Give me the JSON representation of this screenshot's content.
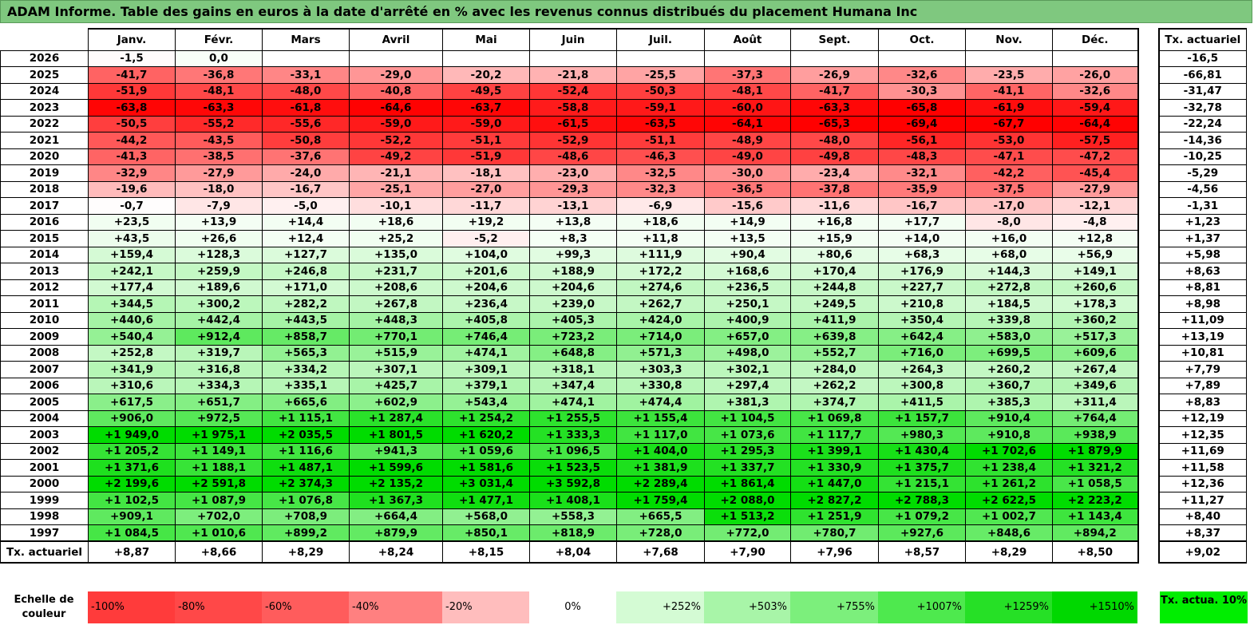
{
  "title": "ADAM Informe. Table des gains en euros à la date d'arrêté en % avec les revenus connus distribués du placement Humana Inc",
  "colors": {
    "title_bg": "#7fc87f",
    "negative": "#ff0000",
    "positive": "#00dd00"
  },
  "chart_data": {
    "type": "table",
    "columns": [
      "Janv.",
      "Févr.",
      "Mars",
      "Avril",
      "Mai",
      "Juin",
      "Juil.",
      "Août",
      "Sept.",
      "Oct.",
      "Nov.",
      "Déc."
    ],
    "rate_header": "Tx. actuariel",
    "rows": [
      {
        "year": "2026",
        "values": [
          "-1,5",
          "0,0",
          "",
          "",
          "",
          "",
          "",
          "",
          "",
          "",
          "",
          ""
        ],
        "rate": "-16,5"
      },
      {
        "year": "2025",
        "values": [
          "-41,7",
          "-36,8",
          "-33,1",
          "-29,0",
          "-20,2",
          "-21,8",
          "-25,5",
          "-37,3",
          "-26,9",
          "-32,6",
          "-23,5",
          "-26,0"
        ],
        "rate": "-66,81"
      },
      {
        "year": "2024",
        "values": [
          "-51,9",
          "-48,1",
          "-48,0",
          "-40,8",
          "-49,5",
          "-52,4",
          "-50,3",
          "-48,1",
          "-41,7",
          "-30,3",
          "-41,1",
          "-32,6"
        ],
        "rate": "-31,47"
      },
      {
        "year": "2023",
        "values": [
          "-63,8",
          "-63,3",
          "-61,8",
          "-64,6",
          "-63,7",
          "-58,8",
          "-59,1",
          "-60,0",
          "-63,3",
          "-65,8",
          "-61,9",
          "-59,4"
        ],
        "rate": "-32,78"
      },
      {
        "year": "2022",
        "values": [
          "-50,5",
          "-55,2",
          "-55,6",
          "-59,0",
          "-59,0",
          "-61,5",
          "-63,5",
          "-64,1",
          "-65,3",
          "-69,4",
          "-67,7",
          "-64,4"
        ],
        "rate": "-22,24"
      },
      {
        "year": "2021",
        "values": [
          "-44,2",
          "-43,5",
          "-50,8",
          "-52,2",
          "-51,1",
          "-52,9",
          "-51,1",
          "-48,9",
          "-48,0",
          "-56,1",
          "-53,0",
          "-57,5"
        ],
        "rate": "-14,36"
      },
      {
        "year": "2020",
        "values": [
          "-41,3",
          "-38,5",
          "-37,6",
          "-49,2",
          "-51,9",
          "-48,6",
          "-46,3",
          "-49,0",
          "-49,8",
          "-48,3",
          "-47,1",
          "-47,2"
        ],
        "rate": "-10,25"
      },
      {
        "year": "2019",
        "values": [
          "-32,9",
          "-27,9",
          "-24,0",
          "-21,1",
          "-18,1",
          "-23,0",
          "-32,5",
          "-30,0",
          "-23,4",
          "-32,1",
          "-42,2",
          "-45,4"
        ],
        "rate": "-5,29"
      },
      {
        "year": "2018",
        "values": [
          "-19,6",
          "-18,0",
          "-16,7",
          "-25,1",
          "-27,0",
          "-29,3",
          "-32,3",
          "-36,5",
          "-37,8",
          "-35,9",
          "-37,5",
          "-27,9"
        ],
        "rate": "-4,56"
      },
      {
        "year": "2017",
        "values": [
          "-0,7",
          "-7,9",
          "-5,0",
          "-10,1",
          "-11,7",
          "-13,1",
          "-6,9",
          "-15,6",
          "-11,6",
          "-16,7",
          "-17,0",
          "-12,1"
        ],
        "rate": "-1,31"
      },
      {
        "year": "2016",
        "values": [
          "+23,5",
          "+13,9",
          "+14,4",
          "+18,6",
          "+19,2",
          "+13,8",
          "+18,6",
          "+14,9",
          "+16,8",
          "+17,7",
          "-8,0",
          "-4,8"
        ],
        "rate": "+1,23"
      },
      {
        "year": "2015",
        "values": [
          "+43,5",
          "+26,6",
          "+12,4",
          "+25,2",
          "-5,2",
          "+8,3",
          "+11,8",
          "+13,5",
          "+15,9",
          "+14,0",
          "+16,0",
          "+12,8"
        ],
        "rate": "+1,37"
      },
      {
        "year": "2014",
        "values": [
          "+159,4",
          "+128,3",
          "+127,7",
          "+135,0",
          "+104,0",
          "+99,3",
          "+111,9",
          "+90,4",
          "+80,6",
          "+68,3",
          "+68,0",
          "+56,9"
        ],
        "rate": "+5,98"
      },
      {
        "year": "2013",
        "values": [
          "+242,1",
          "+259,9",
          "+246,8",
          "+231,7",
          "+201,6",
          "+188,9",
          "+172,2",
          "+168,6",
          "+170,4",
          "+176,9",
          "+144,3",
          "+149,1"
        ],
        "rate": "+8,63"
      },
      {
        "year": "2012",
        "values": [
          "+177,4",
          "+189,6",
          "+171,0",
          "+208,6",
          "+204,6",
          "+204,6",
          "+274,6",
          "+236,5",
          "+244,8",
          "+227,7",
          "+272,8",
          "+260,6"
        ],
        "rate": "+8,81"
      },
      {
        "year": "2011",
        "values": [
          "+344,5",
          "+300,2",
          "+282,2",
          "+267,8",
          "+236,4",
          "+239,0",
          "+262,7",
          "+250,1",
          "+249,5",
          "+210,8",
          "+184,5",
          "+178,3"
        ],
        "rate": "+8,98"
      },
      {
        "year": "2010",
        "values": [
          "+440,6",
          "+442,4",
          "+443,5",
          "+448,3",
          "+405,8",
          "+405,3",
          "+424,0",
          "+400,9",
          "+411,9",
          "+350,4",
          "+339,8",
          "+360,2"
        ],
        "rate": "+11,09"
      },
      {
        "year": "2009",
        "values": [
          "+540,4",
          "+912,4",
          "+858,7",
          "+770,1",
          "+746,4",
          "+723,2",
          "+714,0",
          "+657,0",
          "+639,8",
          "+642,4",
          "+583,0",
          "+517,3"
        ],
        "rate": "+13,19"
      },
      {
        "year": "2008",
        "values": [
          "+252,8",
          "+319,7",
          "+565,3",
          "+515,9",
          "+474,1",
          "+648,8",
          "+571,3",
          "+498,0",
          "+552,7",
          "+716,0",
          "+699,5",
          "+609,6"
        ],
        "rate": "+10,81"
      },
      {
        "year": "2007",
        "values": [
          "+341,9",
          "+316,8",
          "+334,2",
          "+307,1",
          "+309,1",
          "+318,1",
          "+303,3",
          "+302,1",
          "+284,0",
          "+264,3",
          "+260,2",
          "+267,4"
        ],
        "rate": "+7,79"
      },
      {
        "year": "2006",
        "values": [
          "+310,6",
          "+334,3",
          "+335,1",
          "+425,7",
          "+379,1",
          "+347,4",
          "+330,8",
          "+297,4",
          "+262,2",
          "+300,8",
          "+360,7",
          "+349,6"
        ],
        "rate": "+7,89"
      },
      {
        "year": "2005",
        "values": [
          "+617,5",
          "+651,7",
          "+665,6",
          "+602,9",
          "+543,4",
          "+474,1",
          "+474,4",
          "+381,3",
          "+374,7",
          "+411,5",
          "+385,3",
          "+311,4"
        ],
        "rate": "+8,83"
      },
      {
        "year": "2004",
        "values": [
          "+906,0",
          "+972,5",
          "+1 115,1",
          "+1 287,4",
          "+1 254,2",
          "+1 255,5",
          "+1 155,4",
          "+1 104,5",
          "+1 069,8",
          "+1 157,7",
          "+910,4",
          "+764,4"
        ],
        "rate": "+12,19"
      },
      {
        "year": "2003",
        "values": [
          "+1 949,0",
          "+1 975,1",
          "+2 035,5",
          "+1 801,5",
          "+1 620,2",
          "+1 333,3",
          "+1 117,0",
          "+1 073,6",
          "+1 117,7",
          "+980,3",
          "+910,8",
          "+938,9"
        ],
        "rate": "+12,35"
      },
      {
        "year": "2002",
        "values": [
          "+1 205,2",
          "+1 149,1",
          "+1 116,6",
          "+941,3",
          "+1 059,6",
          "+1 096,5",
          "+1 404,0",
          "+1 295,3",
          "+1 399,1",
          "+1 430,4",
          "+1 702,6",
          "+1 879,9"
        ],
        "rate": "+11,69"
      },
      {
        "year": "2001",
        "values": [
          "+1 371,6",
          "+1 188,1",
          "+1 487,1",
          "+1 599,6",
          "+1 581,6",
          "+1 523,5",
          "+1 381,9",
          "+1 337,7",
          "+1 330,9",
          "+1 375,7",
          "+1 238,4",
          "+1 321,2"
        ],
        "rate": "+11,58"
      },
      {
        "year": "2000",
        "values": [
          "+2 199,6",
          "+2 591,8",
          "+2 374,3",
          "+2 135,2",
          "+3 031,4",
          "+3 592,8",
          "+2 289,4",
          "+1 861,4",
          "+1 447,0",
          "+1 215,1",
          "+1 261,2",
          "+1 058,5"
        ],
        "rate": "+12,36"
      },
      {
        "year": "1999",
        "values": [
          "+1 102,5",
          "+1 087,9",
          "+1 076,8",
          "+1 367,3",
          "+1 477,1",
          "+1 408,1",
          "+1 759,4",
          "+2 088,0",
          "+2 827,2",
          "+2 788,3",
          "+2 622,5",
          "+2 223,2"
        ],
        "rate": "+11,27"
      },
      {
        "year": "1998",
        "values": [
          "+909,1",
          "+702,0",
          "+708,9",
          "+664,4",
          "+568,0",
          "+558,3",
          "+665,5",
          "+1 513,2",
          "+1 251,9",
          "+1 079,2",
          "+1 002,7",
          "+1 143,4"
        ],
        "rate": "+8,40"
      },
      {
        "year": "1997",
        "values": [
          "+1 084,5",
          "+1 010,6",
          "+899,2",
          "+879,9",
          "+850,1",
          "+818,9",
          "+728,0",
          "+772,0",
          "+780,7",
          "+927,6",
          "+848,6",
          "+894,2"
        ],
        "rate": "+8,37"
      }
    ],
    "footer": {
      "label": "Tx. actuariel",
      "values": [
        "+8,87",
        "+8,66",
        "+8,29",
        "+8,24",
        "+8,15",
        "+8,04",
        "+7,68",
        "+7,90",
        "+7,96",
        "+8,57",
        "+8,29",
        "+8,50"
      ],
      "rate": "+9,02"
    },
    "scale": {
      "label": "Echelle de couleur",
      "stops": [
        {
          "text": "-100%",
          "color": "#ff3b3b",
          "align": "left"
        },
        {
          "text": "-80%",
          "color": "#ff4848",
          "align": "left"
        },
        {
          "text": "-60%",
          "color": "#ff5c5c",
          "align": "left"
        },
        {
          "text": "-40%",
          "color": "#ff8080",
          "align": "left"
        },
        {
          "text": "-20%",
          "color": "#ffbdbd",
          "align": "left"
        },
        {
          "text": "0%",
          "color": "#ffffff",
          "align": "center"
        },
        {
          "text": "+252%",
          "color": "#d4fbd4",
          "align": "right"
        },
        {
          "text": "+503%",
          "color": "#a8f5a8",
          "align": "right"
        },
        {
          "text": "+755%",
          "color": "#7cef7c",
          "align": "right"
        },
        {
          "text": "+1007%",
          "color": "#4ee94e",
          "align": "right"
        },
        {
          "text": "+1259%",
          "color": "#26e026",
          "align": "right"
        },
        {
          "text": "+1510%",
          "color": "#00d800",
          "align": "right"
        }
      ],
      "actua_label": "Tx. actua. 10%",
      "actua_color": "#00ee00"
    }
  }
}
